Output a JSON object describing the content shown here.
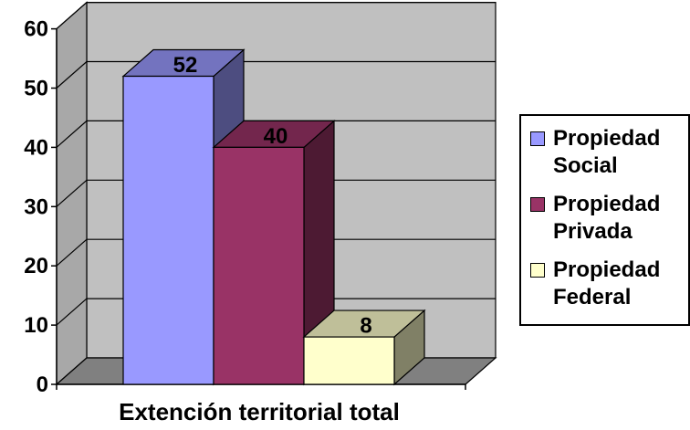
{
  "chart_data": {
    "type": "bar",
    "categories": [
      "Extención territorial total"
    ],
    "series": [
      {
        "name": "Propiedad Social",
        "values": [
          52
        ],
        "color": "#9999ff"
      },
      {
        "name": "Propiedad Privada",
        "values": [
          40
        ],
        "color": "#993366"
      },
      {
        "name": "Propiedad Federal",
        "values": [
          8
        ],
        "color": "#ffffcc"
      }
    ],
    "ylim": [
      0,
      60
    ],
    "yticks": [
      0,
      10,
      20,
      30,
      40,
      50,
      60
    ],
    "grid": true,
    "legend": "right",
    "xlabel": "Extención territorial total",
    "data_labels": [
      "52",
      "40",
      "8"
    ]
  },
  "legend": {
    "items": [
      {
        "label": "Propiedad Social",
        "color": "#9999ff"
      },
      {
        "label": "Propiedad Privada",
        "color": "#993366"
      },
      {
        "label": "Propiedad Federal",
        "color": "#ffffcc"
      }
    ]
  },
  "colors": {
    "wall": "#c0c0c0",
    "floor": "#808080"
  }
}
